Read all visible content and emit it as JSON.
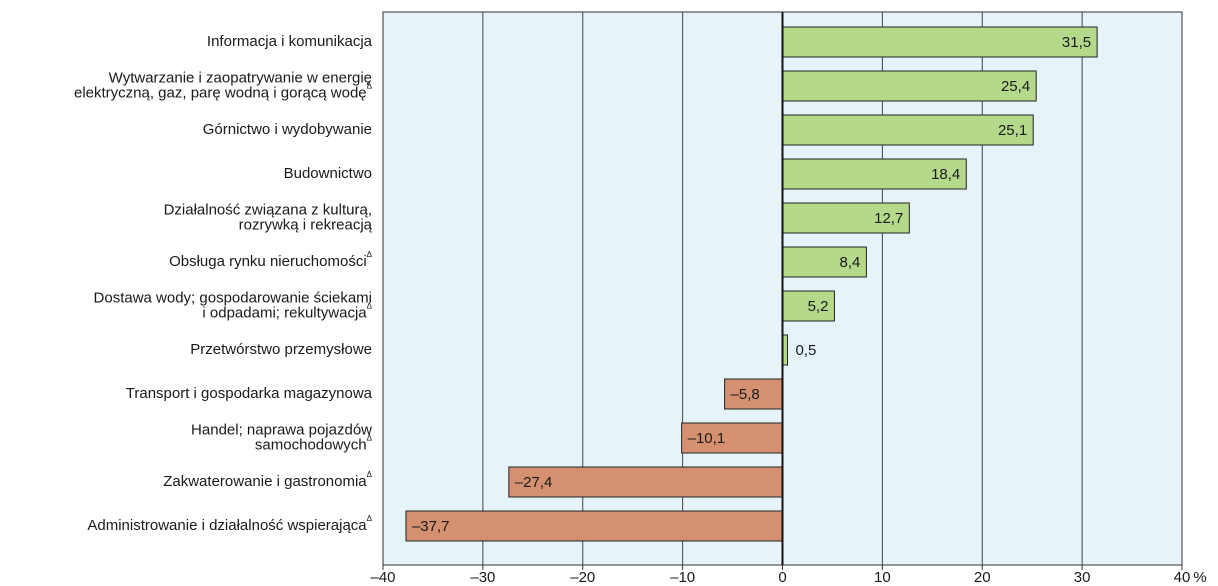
{
  "chart_data": {
    "type": "barh",
    "categories": [
      [
        "Informacja i komunikacja"
      ],
      [
        "Wytwarzanie i zaopatrywanie w energię",
        "elektryczną, gaz, parę wodną i gorącą wodę"
      ],
      [
        "Górnictwo i wydobywanie"
      ],
      [
        "Budownictwo"
      ],
      [
        "Działalność związana z kulturą,",
        "rozrywką i rekreacją"
      ],
      [
        "Obsługa rynku nieruchomości"
      ],
      [
        "Dostawa wody; gospodarowanie ściekami",
        "i odpadami; rekultywacja"
      ],
      [
        "Przetwórstwo przemysłowe"
      ],
      [
        "Transport i gospodarka magazynowa"
      ],
      [
        "Handel; naprawa pojazdów",
        "samochodowych"
      ],
      [
        "Zakwaterowanie i gastronomia"
      ],
      [
        "Administrowanie i działalność wspierająca"
      ]
    ],
    "footnote_mark": "Δ",
    "footnoted": [
      false,
      true,
      false,
      false,
      false,
      true,
      true,
      false,
      false,
      true,
      true,
      true
    ],
    "values": [
      31.5,
      25.4,
      25.1,
      18.4,
      12.7,
      8.4,
      5.2,
      0.5,
      -5.8,
      -10.1,
      -27.4,
      -37.7
    ],
    "value_labels": [
      "31,5",
      "25,4",
      "25,1",
      "18,4",
      "12,7",
      "8,4",
      "5,2",
      "0,5",
      "–5,8",
      "–10,1",
      "–27,4",
      "–37,7"
    ],
    "positive_color": "#b5d98a",
    "negative_color": "#d4906f",
    "background": "#e6f3f9",
    "xlim": [
      -40,
      40
    ],
    "xticks": [
      {
        "value": -40,
        "label": "–40"
      },
      {
        "value": -30,
        "label": "–30"
      },
      {
        "value": -20,
        "label": "–20"
      },
      {
        "value": -10,
        "label": "–10"
      },
      0,
      10,
      20,
      30,
      40
    ],
    "x_unit": "%",
    "grid": true
  }
}
